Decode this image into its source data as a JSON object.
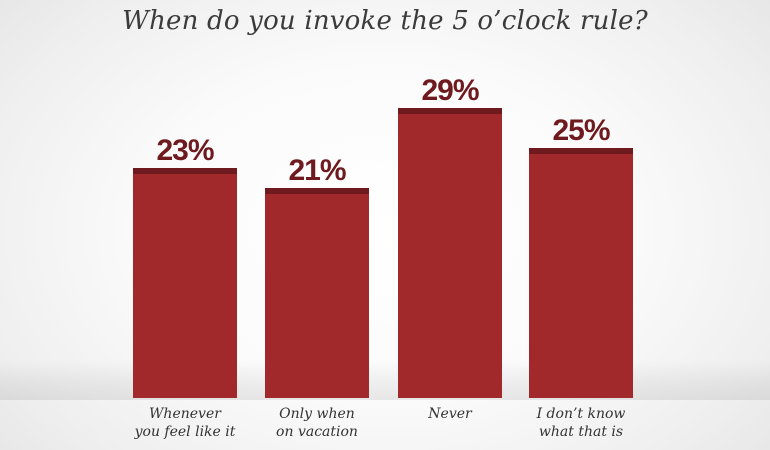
{
  "chart_data": {
    "type": "bar",
    "title": "When do you invoke the 5 o’clock rule?",
    "categories": [
      [
        "Whenever",
        "you feel like it"
      ],
      [
        "Only when",
        "on vacation"
      ],
      [
        "Never"
      ],
      [
        "I don’t know",
        "what that is"
      ]
    ],
    "values": [
      23,
      21,
      29,
      25
    ],
    "value_labels": [
      "23%",
      "21%",
      "29%",
      "25%"
    ],
    "ylim": [
      0,
      40
    ],
    "grid": false,
    "legend": "none",
    "colors": {
      "bar": "#a1292c",
      "bar_top": "#6e1a1e",
      "value_text": "#6e1a1e"
    }
  }
}
